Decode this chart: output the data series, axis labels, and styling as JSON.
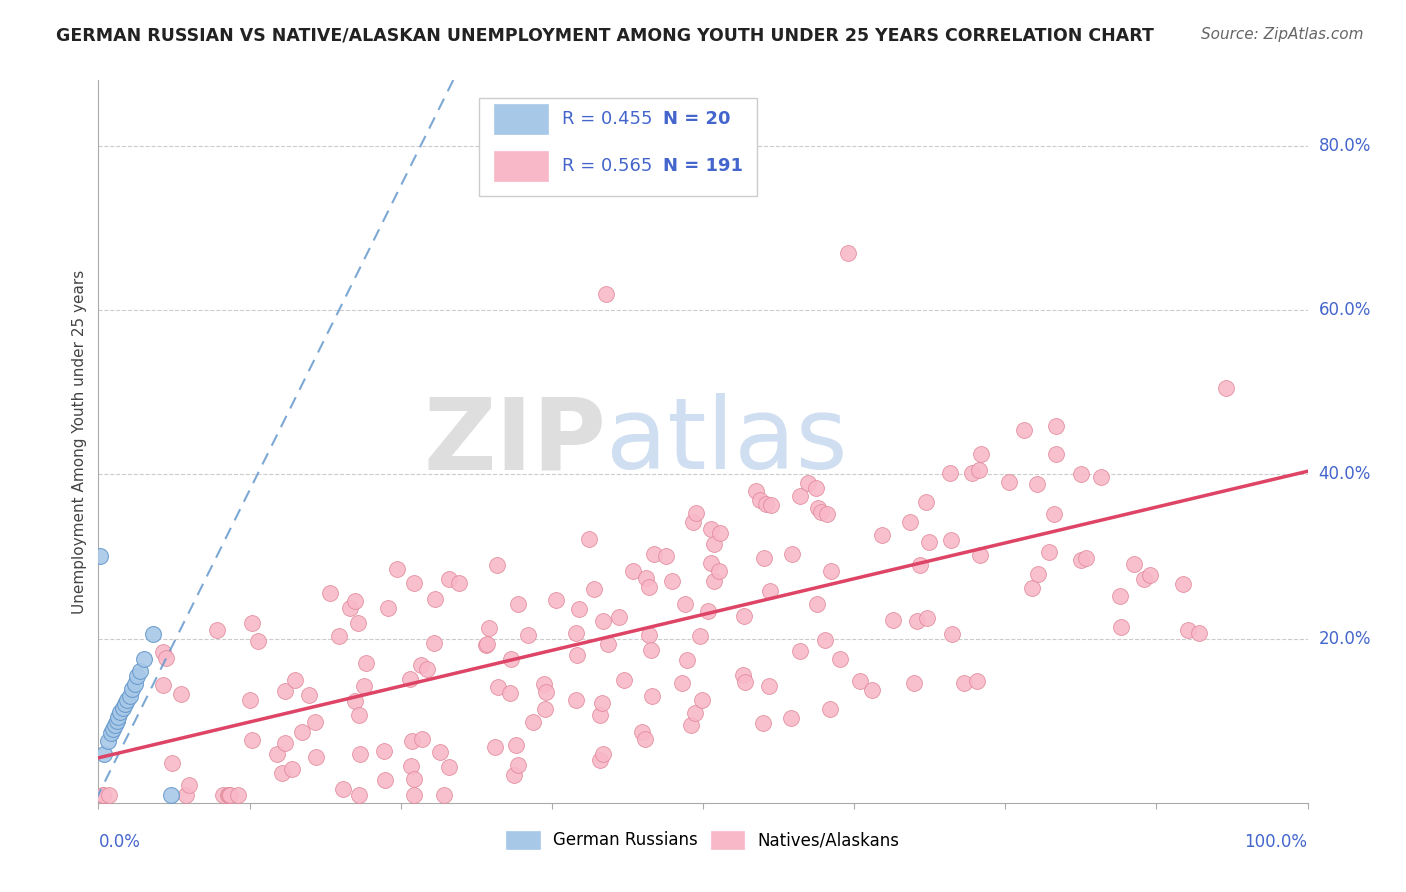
{
  "title": "GERMAN RUSSIAN VS NATIVE/ALASKAN UNEMPLOYMENT AMONG YOUTH UNDER 25 YEARS CORRELATION CHART",
  "source": "Source: ZipAtlas.com",
  "ylabel": "Unemployment Among Youth under 25 years",
  "legend_blue_r": "R = 0.455",
  "legend_blue_n": "N = 20",
  "legend_pink_r": "R = 0.565",
  "legend_pink_n": "N = 191",
  "blue_color": "#a8c8e8",
  "blue_edge_color": "#6699cc",
  "pink_color": "#f8b8c8",
  "pink_edge_color": "#e8708090",
  "blue_line_color": "#6699cc",
  "pink_line_color": "#dd4466",
  "watermark_zip_color": "#cccccc",
  "watermark_atlas_color": "#aabbdd",
  "grid_color": "#cccccc",
  "title_color": "#222222",
  "source_color": "#666666",
  "axis_tick_color": "#4466cc",
  "xlim": [
    0.0,
    1.0
  ],
  "ylim": [
    0.0,
    0.88
  ]
}
